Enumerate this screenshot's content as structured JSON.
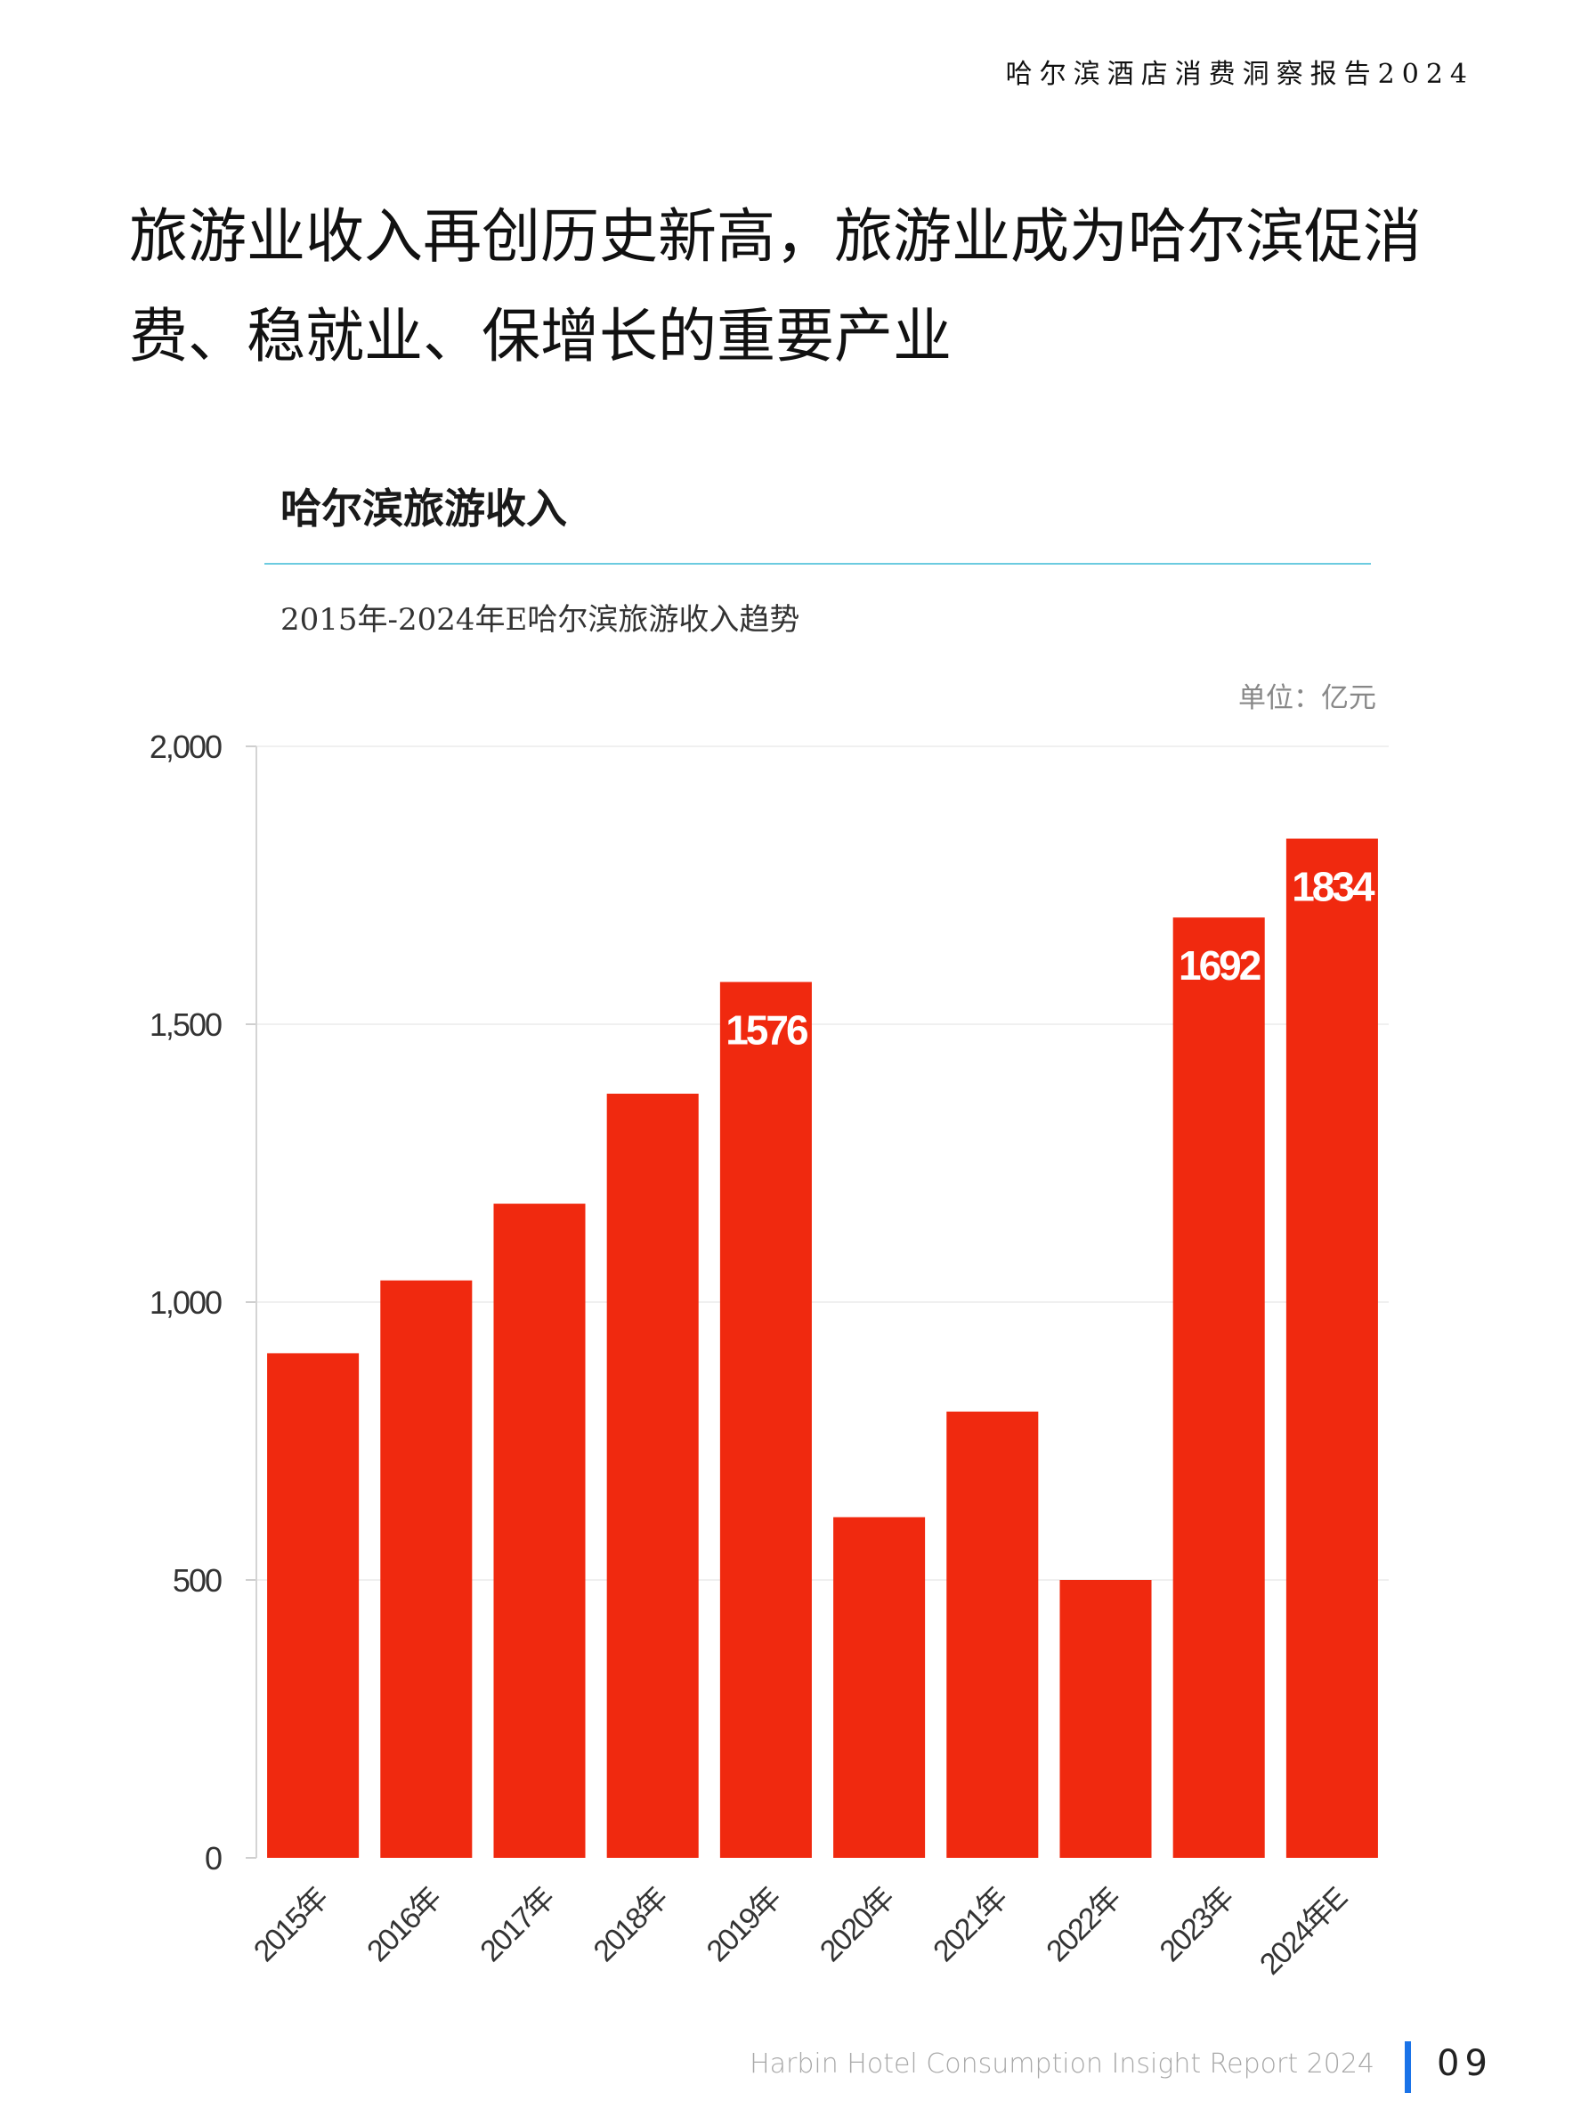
{
  "header": {
    "report_title": "哈尔滨酒店消费洞察报告2024"
  },
  "headline": "旅游业收入再创历史新高，旅游业成为哈尔滨促消费、稳就业、保增长的重要产业",
  "chart_data": {
    "type": "bar",
    "title": "哈尔滨旅游收入",
    "subtitle": "2015年-2024年E哈尔滨旅游收入趋势",
    "unit": "单位：亿元",
    "categories": [
      "2015年",
      "2016年",
      "2017年",
      "2018年",
      "2019年",
      "2020年",
      "2021年",
      "2022年",
      "2023年",
      "2024年E"
    ],
    "values": [
      908,
      1039,
      1177,
      1375,
      1576,
      613,
      803,
      500,
      1692,
      1834
    ],
    "data_labels": [
      "",
      "",
      "",
      "",
      "1576",
      "",
      "",
      "",
      "1692",
      "1834"
    ],
    "ylim": [
      0,
      2000
    ],
    "yticks": [
      0,
      500,
      1000,
      1500,
      2000
    ],
    "ytick_labels": [
      "0",
      "500",
      "1,000",
      "1,500",
      "2,000"
    ],
    "bar_color": "#f0290f",
    "grid": true
  },
  "footer": {
    "report_name": "Harbin Hotel Consumption Insight Report 2024",
    "page_number": "09",
    "accent_color": "#1a73e8"
  }
}
